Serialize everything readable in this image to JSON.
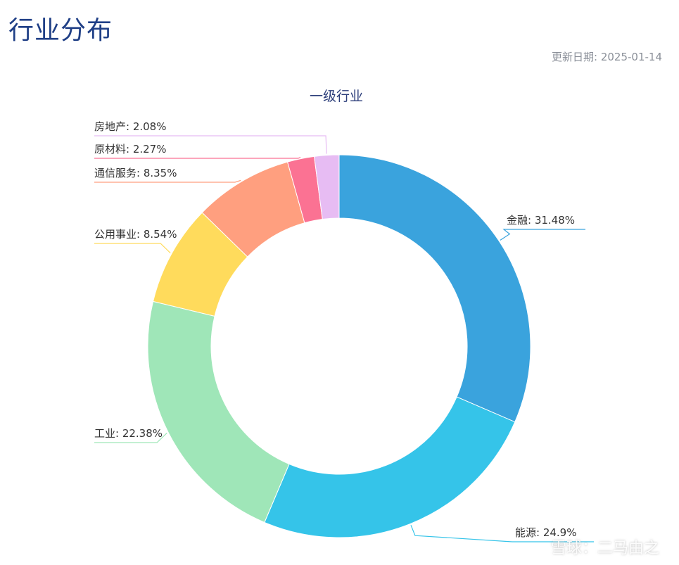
{
  "page": {
    "title": "行业分布",
    "update_date": "更新日期: 2025-01-14",
    "watermark": "雪球：二马由之"
  },
  "chart_data": {
    "type": "pie",
    "title": "一级行业",
    "donut": true,
    "categories": [
      "金融",
      "能源",
      "工业",
      "公用事业",
      "通信服务",
      "原材料",
      "房地产"
    ],
    "values": [
      31.48,
      24.9,
      22.38,
      8.54,
      8.35,
      2.27,
      2.08
    ],
    "labels": [
      "金融: 31.48%",
      "能源: 24.9%",
      "工业: 22.38%",
      "公用事业: 8.54%",
      "通信服务: 8.35%",
      "原材料: 2.27%",
      "房地产: 2.08%"
    ],
    "colors": [
      "#3aa3dd",
      "#35c4e9",
      "#9fe6b8",
      "#ffdb5c",
      "#ff9f7f",
      "#fb7293",
      "#e7bcf3"
    ]
  }
}
